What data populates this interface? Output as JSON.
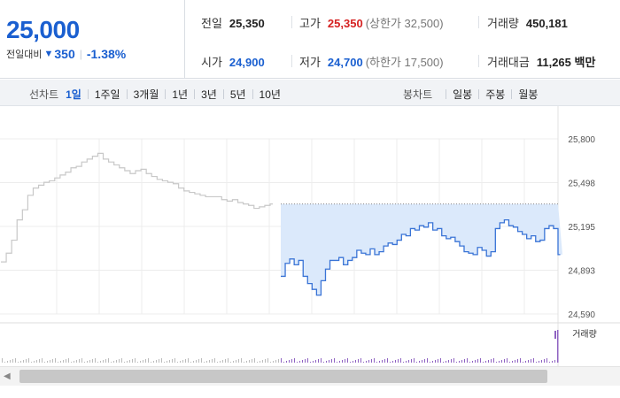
{
  "summary": {
    "price": "25,000",
    "change_label": "전일대비",
    "change_amount": "350",
    "change_rate": "-1.38%"
  },
  "stats": {
    "prev_close": {
      "label": "전일",
      "value": "25,350"
    },
    "high": {
      "label": "고가",
      "value": "25,350",
      "sub": "(상한가 32,500)"
    },
    "volume": {
      "label": "거래량",
      "value": "450,181"
    },
    "open": {
      "label": "시가",
      "value": "24,900"
    },
    "low": {
      "label": "저가",
      "value": "24,700",
      "sub": "(하한가 17,500)"
    },
    "trade_value": {
      "label": "거래대금",
      "value": "11,265 백만"
    }
  },
  "toolbar": {
    "line_chart_label": "선차트",
    "periods": [
      "1일",
      "1주일",
      "3개월",
      "1년",
      "3년",
      "5년",
      "10년"
    ],
    "active_period": "1일",
    "candle_chart_label": "봉차트",
    "candles": [
      "일봉",
      "주봉",
      "월봉"
    ]
  },
  "colors": {
    "accent_blue": "#1a5fd0",
    "up_red": "#d52222",
    "prev_day_line": "#c8c8c8",
    "today_line": "#3a74d6",
    "area_fill": "#dbe9fb"
  },
  "chart_data": {
    "type": "line",
    "title": "",
    "y_ticks": [
      "25,800",
      "25,498",
      "25,195",
      "24,893",
      "24,590"
    ],
    "ylim": [
      24590,
      25800
    ],
    "grid": true,
    "reference_line": 25350,
    "volume_label": "거래량",
    "series": [
      {
        "values": [
          24950,
          25010,
          25100,
          25240,
          25310,
          25410,
          25460,
          25480,
          25500,
          25510,
          25530,
          25550,
          25570,
          25600,
          25610,
          25640,
          25660,
          25680,
          25700,
          25660,
          25640,
          25620,
          25600,
          25580,
          25560,
          25580,
          25590,
          25560,
          25540,
          25520,
          25510,
          25500,
          25490,
          25460,
          25440,
          25430,
          25420,
          25410,
          25400,
          25400,
          25400,
          25380,
          25370,
          25380,
          25360,
          25350,
          25340,
          25320,
          25330,
          25340,
          25350
        ]
      },
      {
        "values": [
          24850,
          24940,
          24970,
          24930,
          24960,
          24850,
          24800,
          24760,
          24720,
          24820,
          24900,
          24960,
          24960,
          24980,
          24930,
          24960,
          24980,
          25030,
          25010,
          25000,
          25040,
          25000,
          25020,
          25060,
          25080,
          25070,
          25100,
          25140,
          25130,
          25180,
          25170,
          25200,
          25190,
          25220,
          25170,
          25180,
          25130,
          25110,
          25120,
          25090,
          25060,
          25020,
          25010,
          25000,
          25050,
          25030,
          24990,
          25020,
          25180,
          25220,
          25240,
          25200,
          25190,
          25160,
          25140,
          25110,
          25130,
          25090,
          25100,
          25180,
          25200,
          25180,
          25000
        ]
      }
    ]
  }
}
